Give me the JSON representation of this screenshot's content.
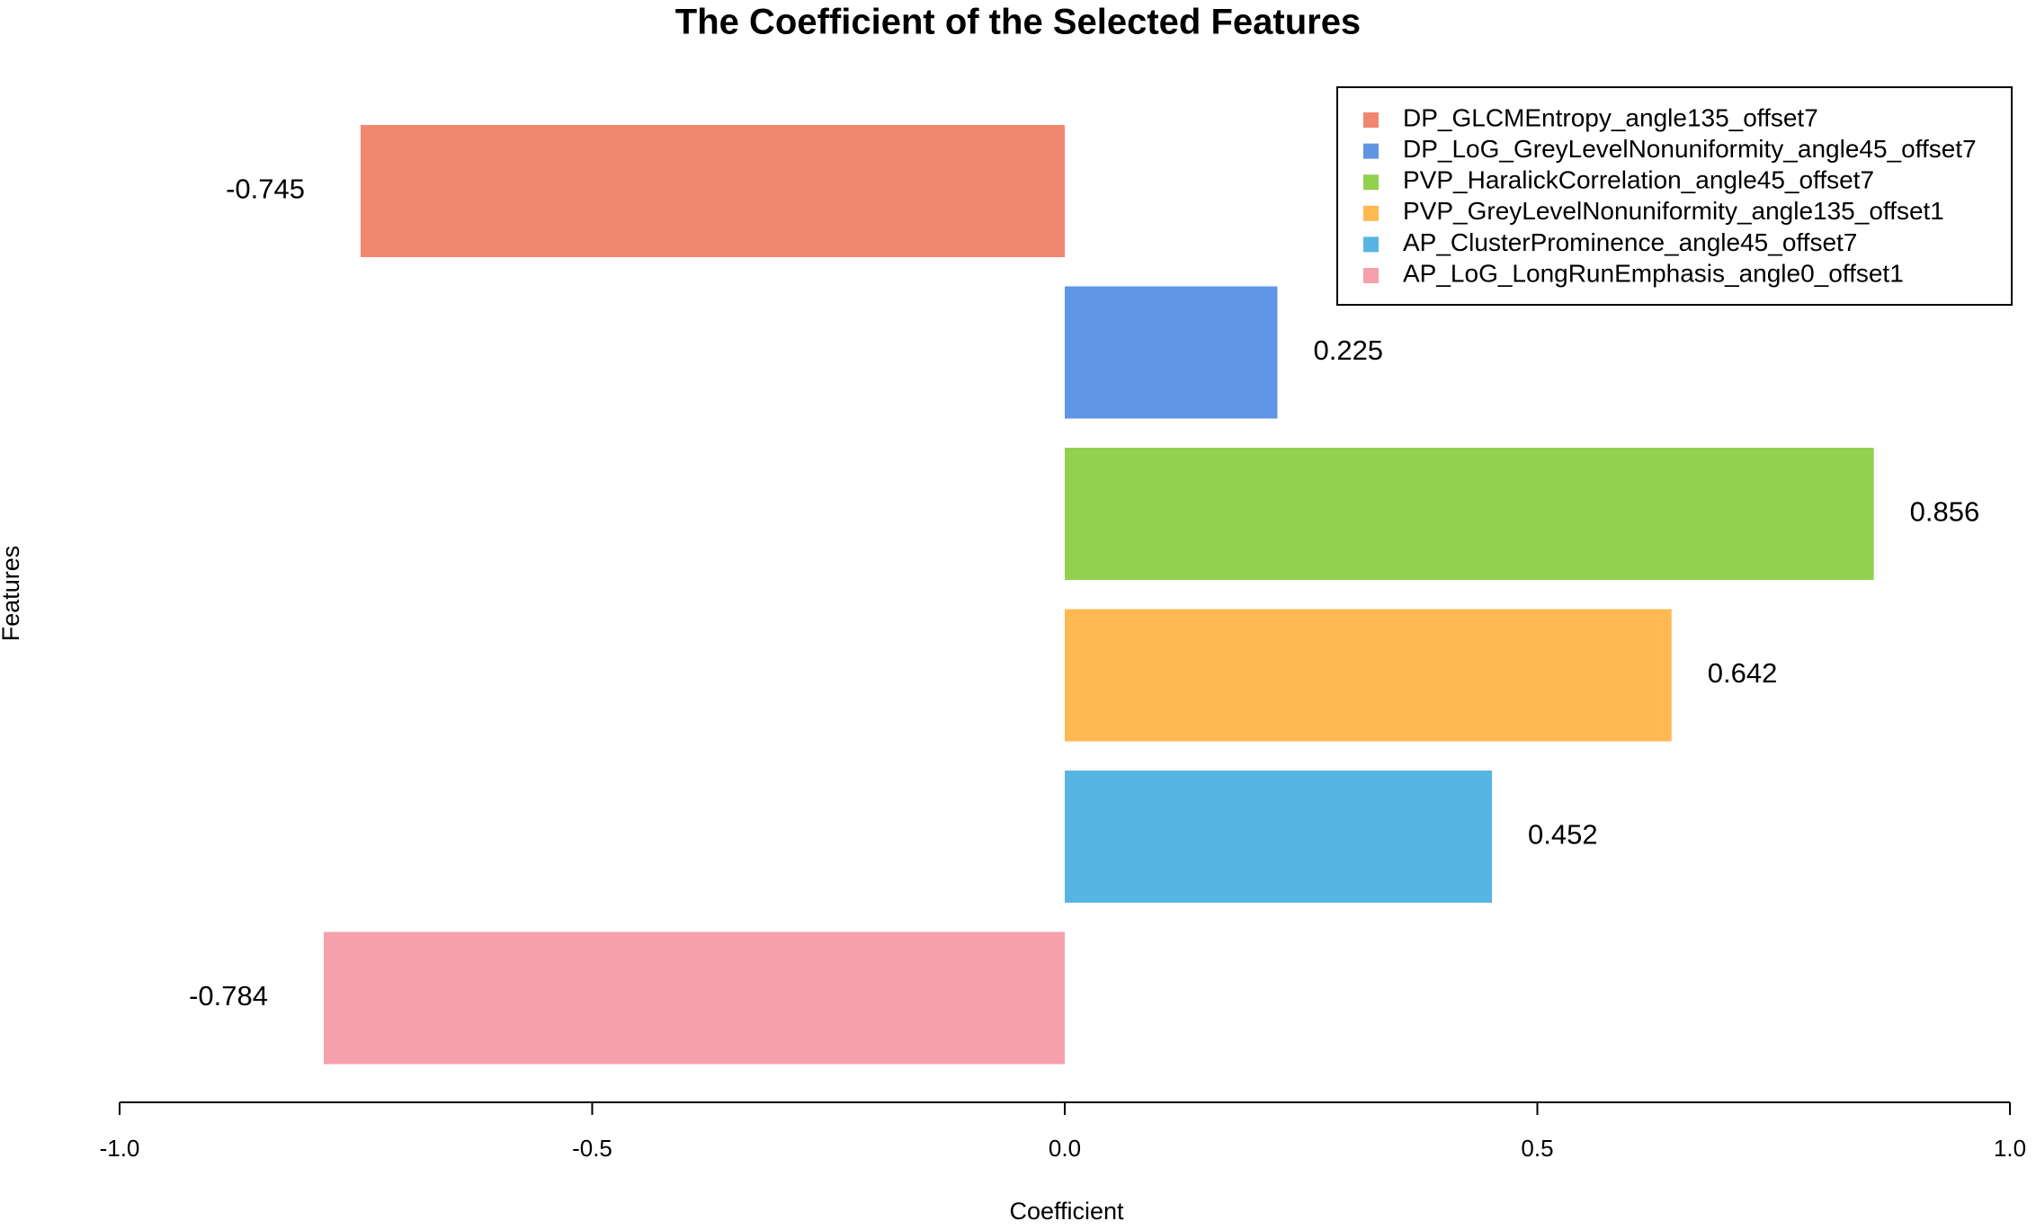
{
  "chart_data": {
    "type": "barh",
    "title": "The Coefficient of the Selected Features",
    "xlabel": "Coefficient",
    "ylabel": "Features",
    "categories": [
      "DP_GLCMEntropy_angle135_offset7",
      "DP_LoG_GreyLevelNonuniformity_angle45_offset7",
      "PVP_HaralickCorrelation_angle45_offset7",
      "PVP_GreyLevelNonuniformity_angle135_offset1",
      "AP_ClusterProminence_angle45_offset7",
      "AP_LoG_LongRunEmphasis_angle0_offset1"
    ],
    "values": [
      -0.745,
      0.225,
      0.856,
      0.642,
      0.452,
      -0.784
    ],
    "colors": [
      "#f2876f",
      "#6095e6",
      "#92d050",
      "#ffb852",
      "#56b5e3",
      "#f5a0ab"
    ],
    "xlim": [
      -1,
      1
    ],
    "xticks": [
      {
        "value": -1,
        "label": "-1.0"
      },
      -0.5,
      {
        "value": 0,
        "label": "0.0"
      },
      0.5,
      {
        "value": 1,
        "label": "1.0"
      }
    ],
    "legend": "top-right"
  }
}
